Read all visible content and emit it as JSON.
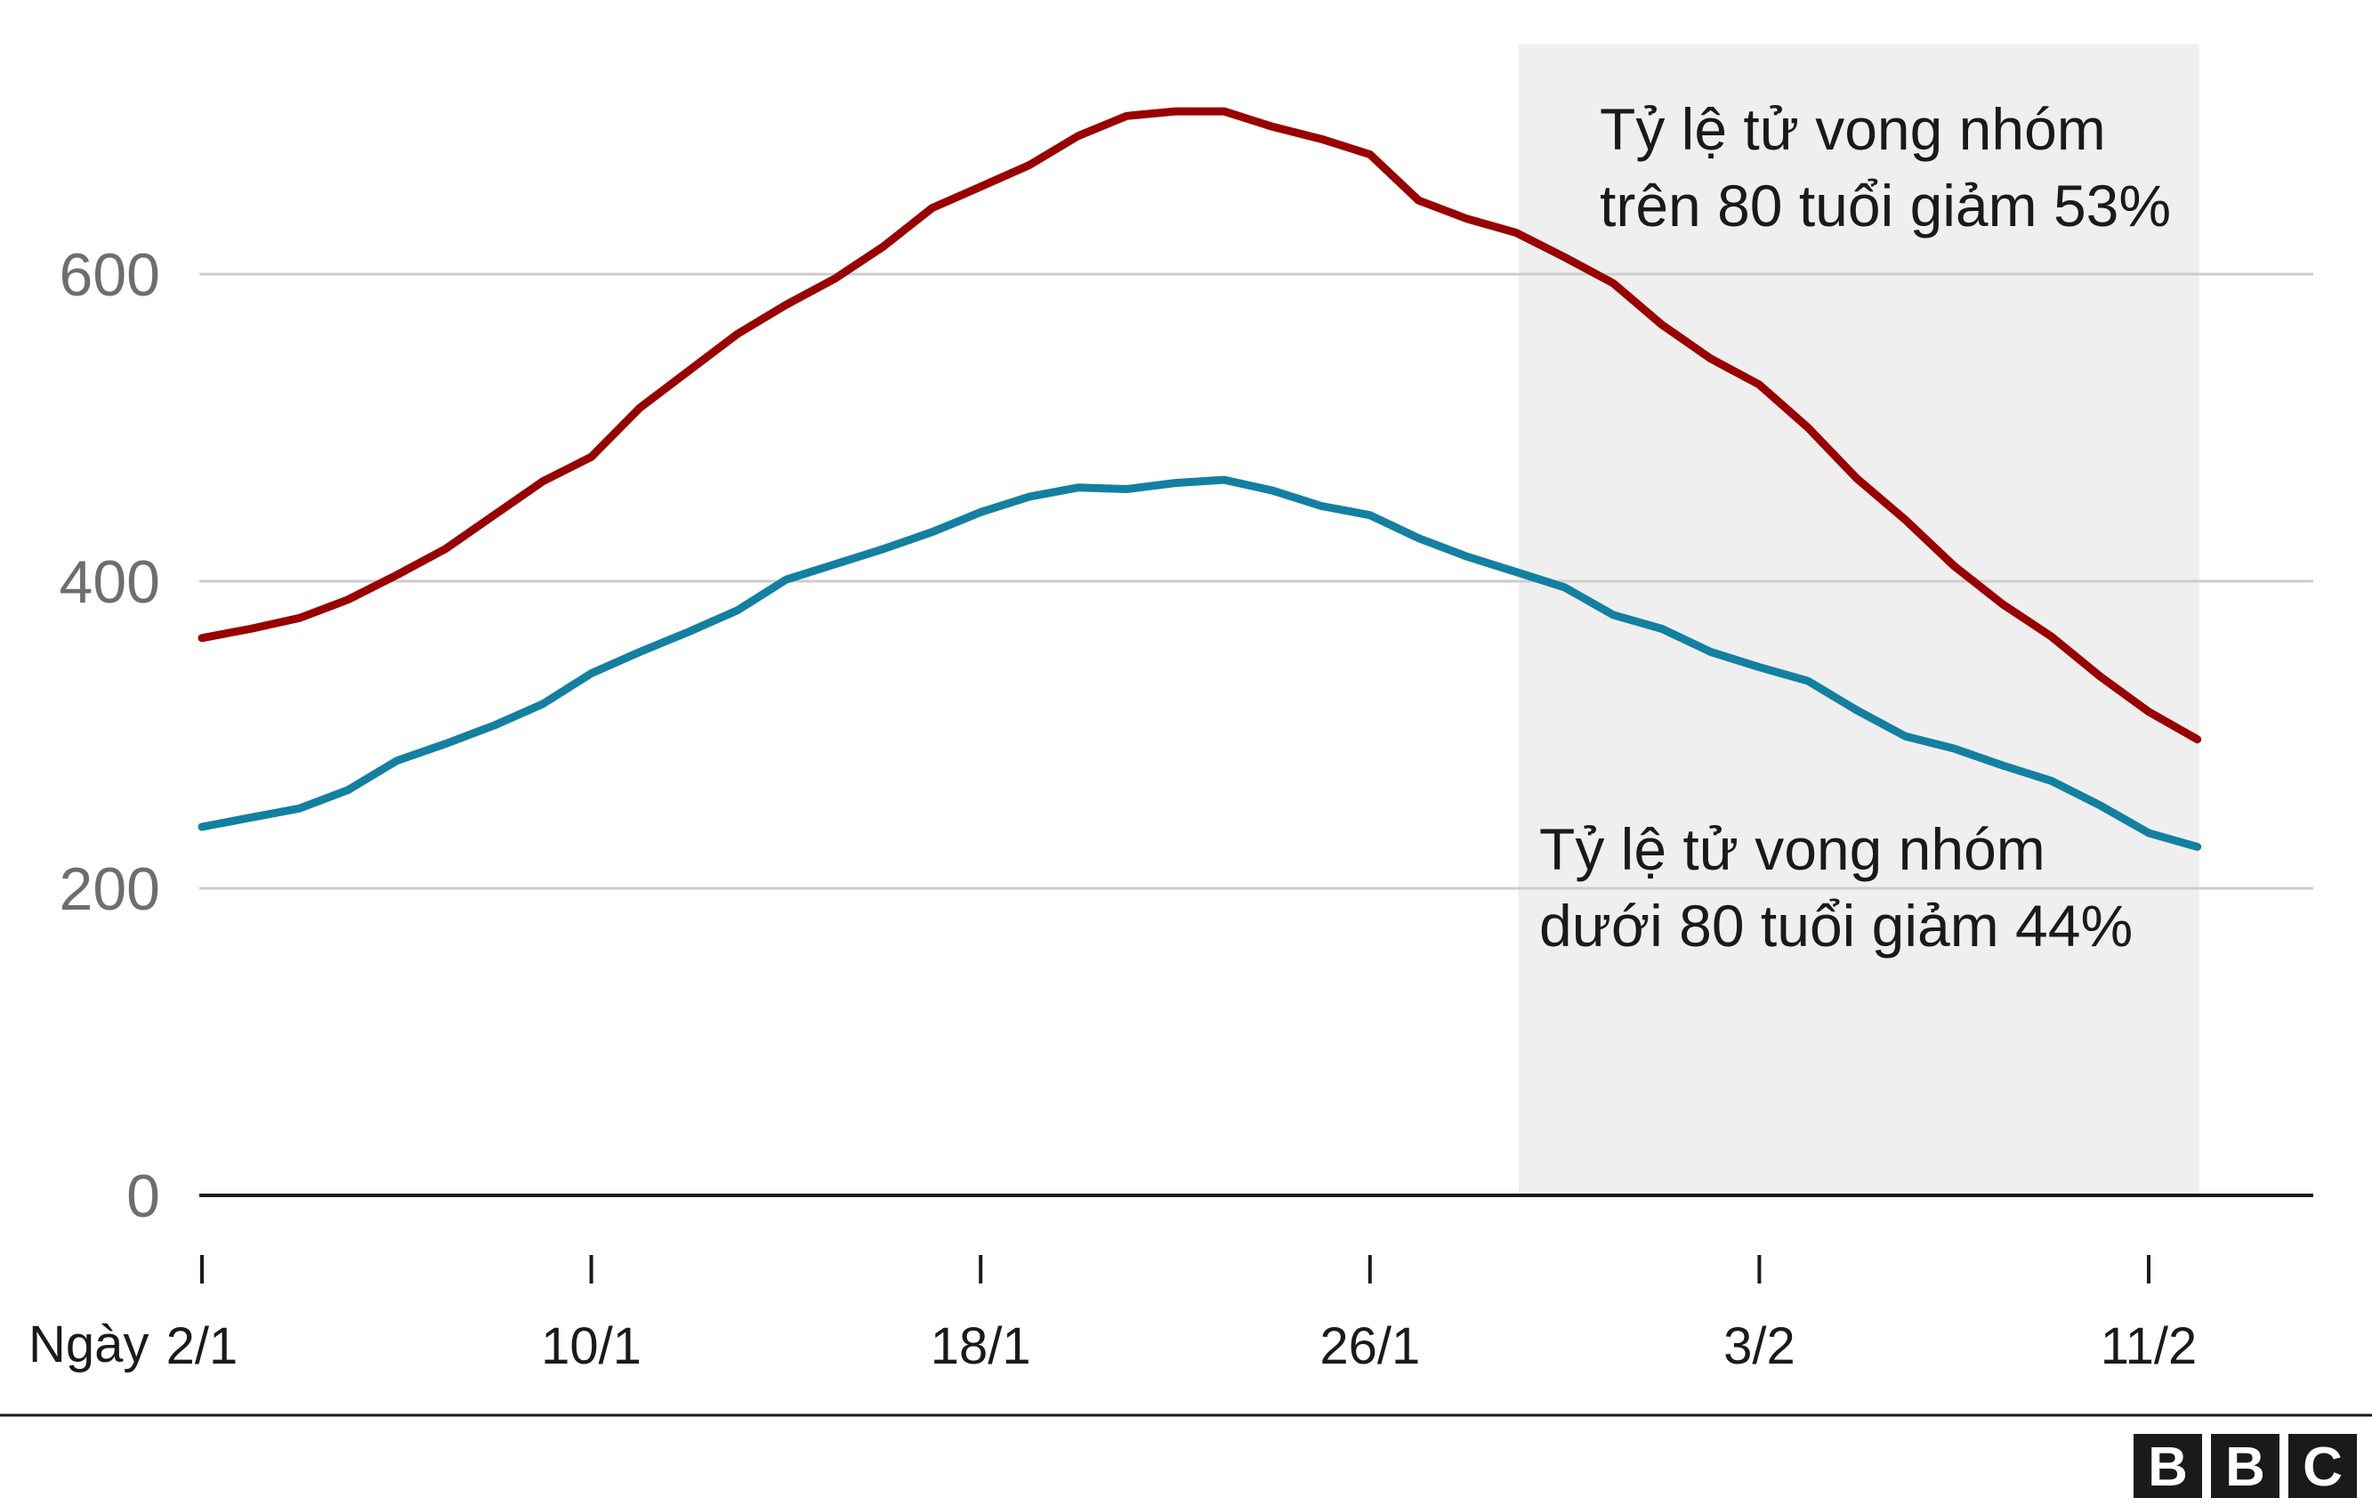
{
  "chart_data": {
    "type": "line",
    "title": "",
    "xlabel": "Ngày",
    "ylabel": "",
    "ylim": [
      0,
      700
    ],
    "yticks": [
      "0",
      "200",
      "400",
      "600"
    ],
    "yticks_values": [
      0,
      200,
      400,
      600
    ],
    "xticks": [
      "2/1",
      "10/1",
      "18/1",
      "26/1",
      "3/2",
      "11/2"
    ],
    "xticks_index": [
      0,
      8,
      16,
      24,
      32,
      40
    ],
    "grid": true,
    "highlight_range": [
      27,
      41
    ],
    "x": [
      "1/1",
      "2/1",
      "3/1",
      "4/1",
      "5/1",
      "6/1",
      "7/1",
      "8/1",
      "9/1",
      "10/1",
      "11/1",
      "12/1",
      "13/1",
      "14/1",
      "15/1",
      "16/1",
      "17/1",
      "18/1",
      "19/1",
      "20/1",
      "21/1",
      "22/1",
      "23/1",
      "24/1",
      "25/1",
      "26/1",
      "27/1",
      "28/1",
      "29/1",
      "30/1",
      "31/1",
      "1/2",
      "2/2",
      "3/2",
      "4/2",
      "5/2",
      "6/2",
      "7/2",
      "8/2",
      "9/2",
      "10/2",
      "11/2"
    ],
    "series": [
      {
        "color": "#990000",
        "values": [
          363,
          369,
          376,
          388,
          404,
          421,
          443,
          465,
          481,
          513,
          537,
          561,
          580,
          597,
          618,
          643,
          657,
          671,
          690,
          703,
          706,
          706,
          696,
          688,
          678,
          648,
          636,
          627,
          611,
          594,
          567,
          545,
          528,
          500,
          467,
          440,
          410,
          385,
          364,
          338,
          315,
          297
        ]
      },
      {
        "color": "#1380a1",
        "values": [
          240,
          246,
          252,
          264,
          283,
          294,
          306,
          320,
          340,
          354,
          367,
          381,
          401,
          411,
          421,
          432,
          445,
          455,
          461,
          460,
          464,
          466,
          459,
          449,
          443,
          428,
          416,
          406,
          396,
          378,
          369,
          354,
          344,
          335,
          316,
          299,
          291,
          280,
          270,
          254,
          236,
          227
        ]
      }
    ],
    "annotations": [
      {
        "lines": [
          "Tỷ lệ tử vong nhóm",
          "trên 80 tuổi giảm 53%"
        ]
      },
      {
        "lines": [
          "Tỷ lệ tử vong nhóm",
          "dưới 80 tuổi giảm 44%"
        ]
      }
    ]
  },
  "branding": {
    "letters": [
      "B",
      "B",
      "C"
    ],
    "color": "#1a1a1a"
  },
  "colors": {
    "highlight": "#efefef",
    "grid": "#cccccc",
    "axis": "#1a1a1a"
  }
}
